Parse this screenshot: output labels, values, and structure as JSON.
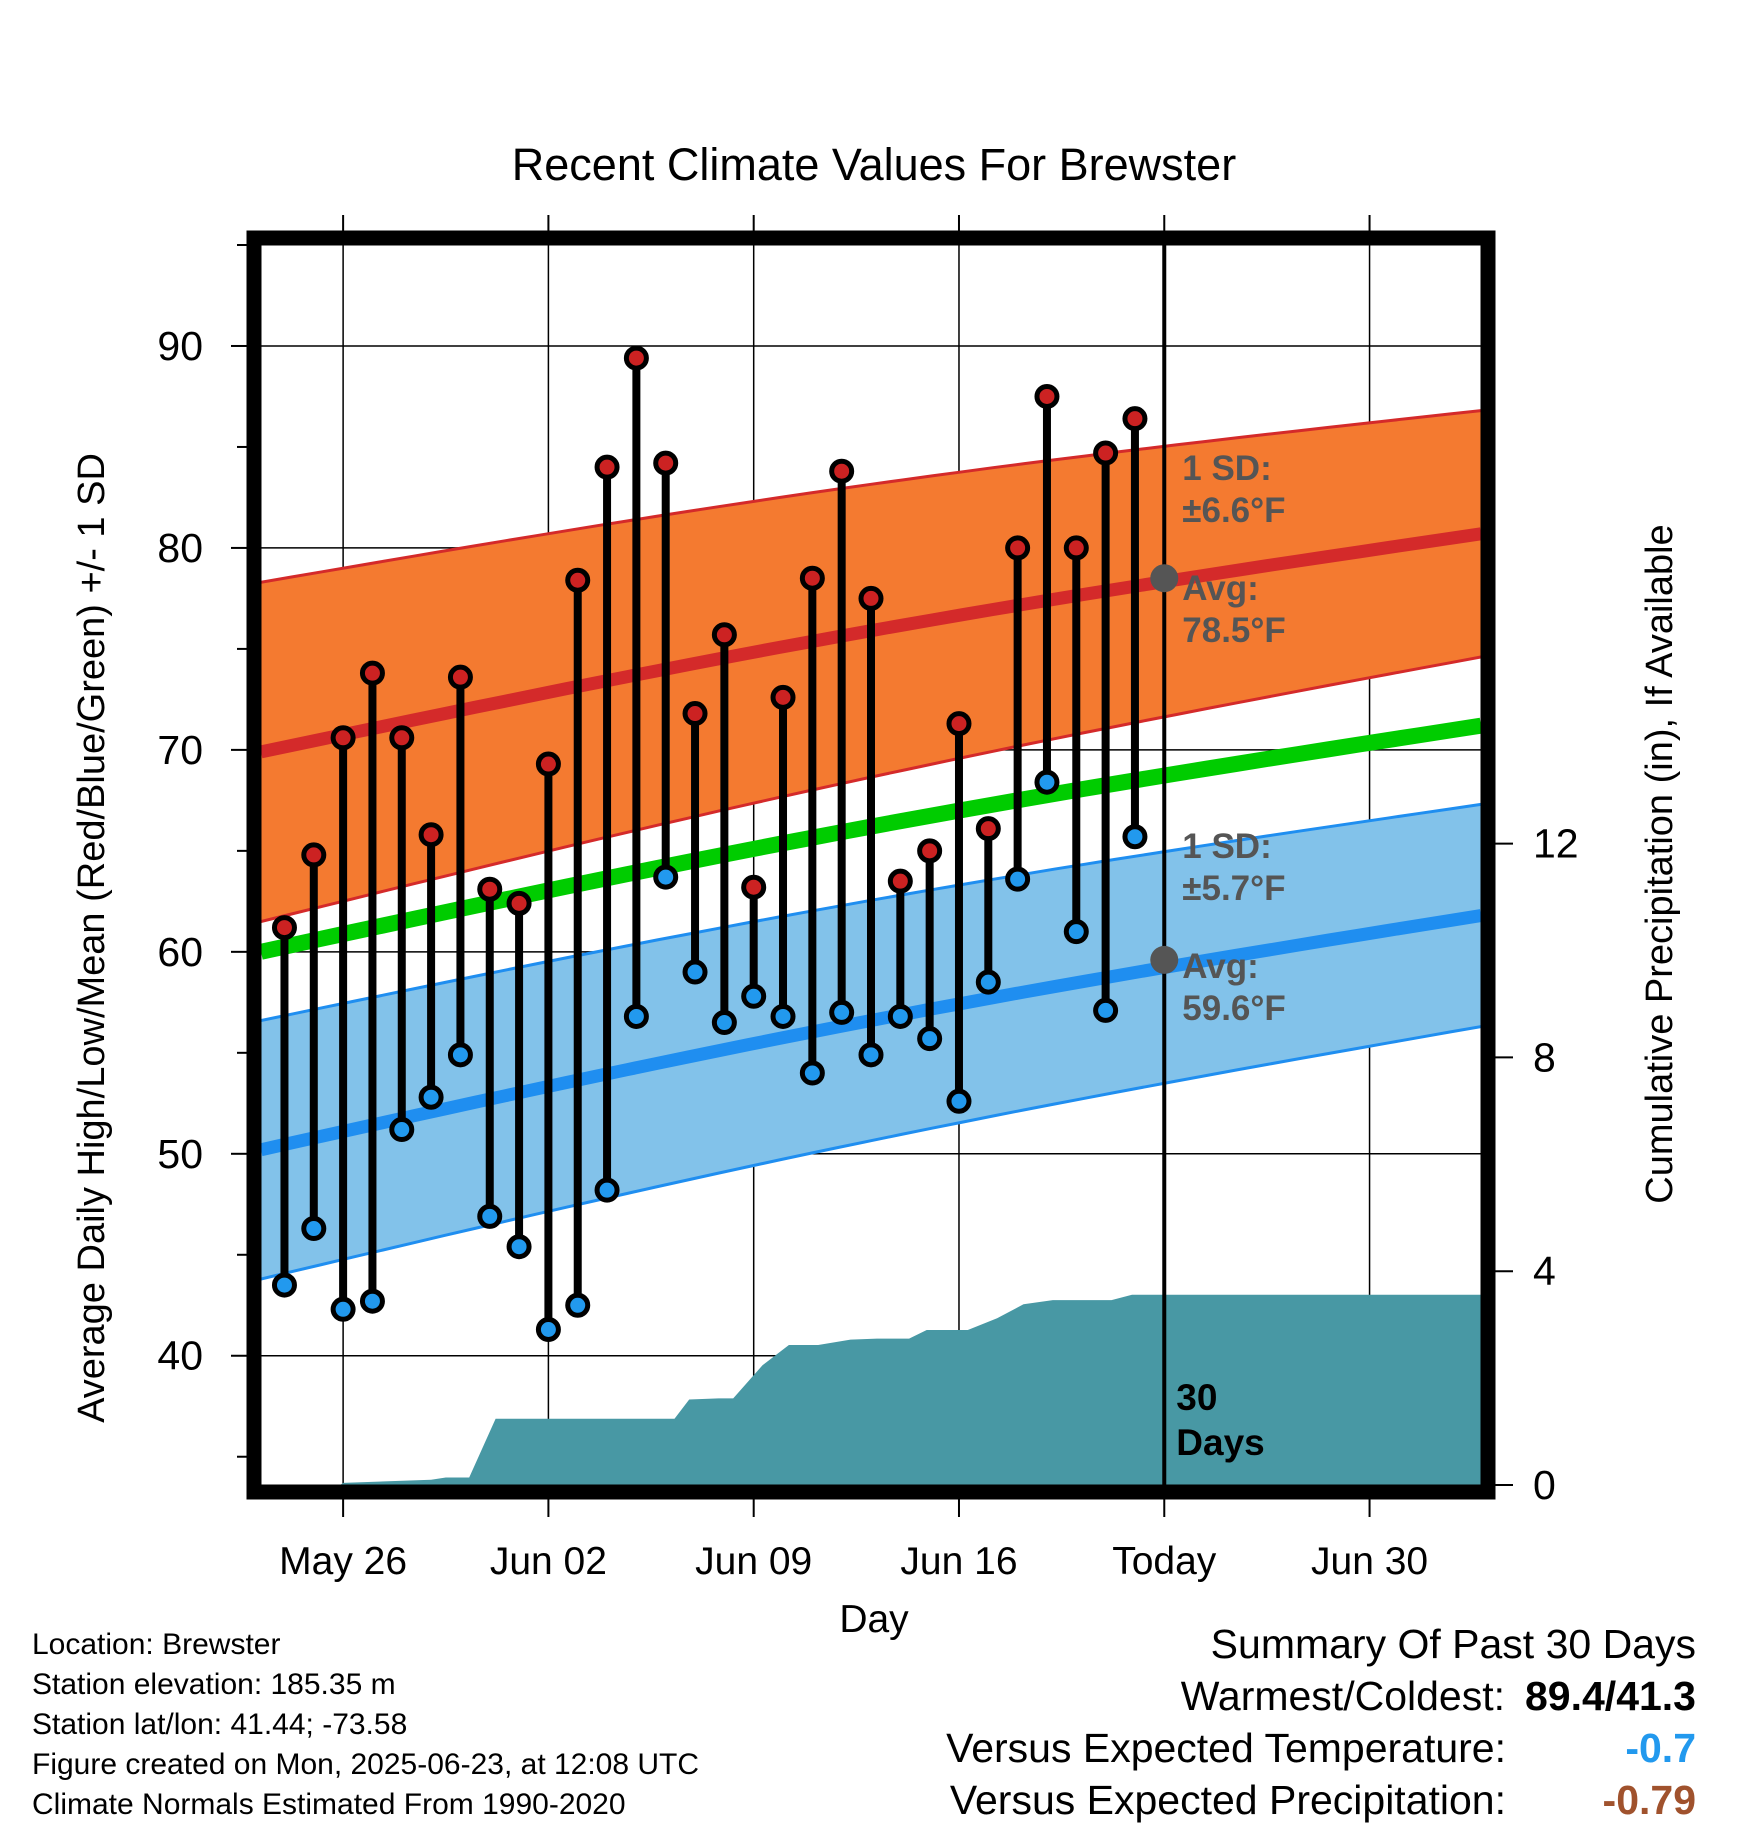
{
  "chart_data": {
    "type": "line",
    "title": "Recent Climate Values For Brewster",
    "xlabel": "Day",
    "ylabel_left": "Average Daily High/Low/Mean (Red/Blue/Green) +/- 1 SD",
    "ylabel_right": "Cumulative Precipitation (in), If Available",
    "x_tick_labels": [
      "May 26",
      "Jun 02",
      "Jun 09",
      "Jun 16",
      "Today",
      "Jun 30"
    ],
    "x_tick_days": [
      2,
      9,
      16,
      23,
      30,
      37
    ],
    "x_range_days": [
      -0.8,
      40.8
    ],
    "y_left_ticks": [
      40,
      50,
      60,
      70,
      80,
      90
    ],
    "y_left_range": [
      33.6,
      95.0
    ],
    "y_right_ticks": [
      0,
      4,
      8,
      12
    ],
    "y_right_range": [
      0,
      23.2
    ],
    "grid": true,
    "colors": {
      "high_band": "#f47a30",
      "high_line": "#d42a2a",
      "low_band": "#82c2ea",
      "low_line": "#1f8ef0",
      "mean_line": "#00cc00",
      "precip": "#4898a4",
      "high_marker": "#cc2222",
      "low_marker": "#2299ee",
      "today_marker": "#555555",
      "neg_temp": "#2299ee",
      "neg_precip": "#a0522d"
    },
    "normals": {
      "days": [
        -0.8,
        40.8
      ],
      "high_avg": [
        69.9,
        80.7
      ],
      "high_sd": [
        8.4,
        6.1
      ],
      "low_avg": [
        50.2,
        61.8
      ],
      "low_sd": [
        6.4,
        5.5
      ],
      "mean_avg": [
        60.0,
        71.2
      ]
    },
    "daily": {
      "days": [
        0,
        1,
        2,
        3,
        4,
        5,
        6,
        7,
        8,
        9,
        10,
        11,
        12,
        13,
        14,
        15,
        16,
        17,
        18,
        19,
        20,
        21,
        22,
        23,
        24,
        25,
        26,
        27,
        28,
        29
      ],
      "high": [
        61.2,
        64.8,
        70.6,
        73.8,
        70.6,
        65.8,
        73.6,
        63.1,
        62.4,
        69.3,
        78.4,
        84.0,
        89.4,
        84.2,
        71.8,
        75.7,
        63.2,
        72.6,
        78.5,
        83.8,
        77.5,
        63.5,
        65.0,
        71.3,
        66.1,
        80.0,
        87.5,
        80.0,
        84.7,
        86.4
      ],
      "low": [
        43.5,
        46.3,
        42.3,
        42.7,
        51.2,
        52.8,
        54.9,
        46.9,
        45.4,
        41.3,
        42.5,
        48.2,
        56.8,
        63.7,
        59.0,
        56.5,
        57.8,
        56.8,
        54.0,
        57.0,
        54.9,
        56.8,
        55.7,
        52.6,
        58.5,
        63.6,
        68.4,
        61.0,
        57.1,
        65.7
      ]
    },
    "precip": {
      "days": [
        -0.8,
        1.9,
        2.0,
        5.0,
        5.5,
        6.3,
        7.2,
        7.6,
        10.2,
        13.3,
        13.8,
        14.8,
        15.3,
        16.3,
        17.2,
        17.8,
        18.2,
        19.3,
        20.2,
        21.3,
        21.9,
        22.7,
        23.3,
        24.3,
        25.2,
        26.2,
        28.2,
        28.9,
        40.8
      ],
      "cumulative": [
        0.0,
        0.0,
        0.04,
        0.1,
        0.14,
        0.14,
        1.24,
        1.24,
        1.24,
        1.24,
        1.6,
        1.62,
        1.62,
        2.24,
        2.62,
        2.62,
        2.62,
        2.72,
        2.74,
        2.74,
        2.9,
        2.9,
        2.9,
        3.12,
        3.38,
        3.46,
        3.46,
        3.56,
        3.56
      ]
    },
    "today": {
      "day": 30,
      "high_label": [
        "1 SD:",
        "±6.6°F",
        "Avg:",
        "78.5°F"
      ],
      "high_avg": 78.5,
      "low_label": [
        "1 SD:",
        "±5.7°F",
        "Avg:",
        "59.6°F"
      ],
      "low_avg": 59.6,
      "period_label": [
        "30",
        "Days"
      ]
    }
  },
  "footer": {
    "location": "Location: Brewster",
    "elevation": "Station elevation: 185.35 m",
    "latlon": "Station lat/lon: 41.44; -73.58",
    "created": "Figure created on Mon, 2025-06-23, at 12:08 UTC",
    "normals": "Climate Normals Estimated From 1990-2020"
  },
  "summary": {
    "heading": "Summary Of Past 30 Days",
    "warm_cold_label": "Warmest/Coldest:",
    "warm_cold_value": "89.4/41.3",
    "temp_label": "Versus Expected Temperature:",
    "temp_value": "-0.7",
    "precip_label": "Versus Expected Precipitation:",
    "precip_value": "-0.79"
  }
}
